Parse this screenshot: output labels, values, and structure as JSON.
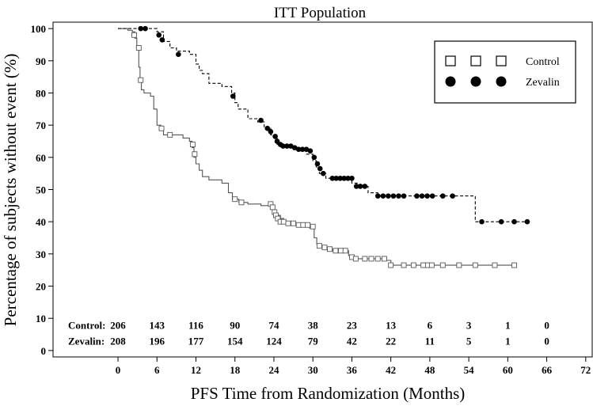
{
  "chart_data": {
    "type": "line",
    "title": "ITT Population",
    "xlabel": "PFS Time from Randomization (Months)",
    "ylabel": "Percentage of subjects without event (%)",
    "xlim": [
      -10,
      73
    ],
    "ylim": [
      -2,
      102
    ],
    "x_ticks": [
      0,
      6,
      12,
      18,
      24,
      30,
      36,
      42,
      48,
      54,
      60,
      66,
      72
    ],
    "y_ticks": [
      0,
      10,
      20,
      30,
      40,
      50,
      60,
      70,
      80,
      90,
      100
    ],
    "grid": false,
    "legend_position": "top-right",
    "series": [
      {
        "name": "Control",
        "line_style": "solid",
        "marker": "open-square",
        "color": "#555555",
        "steps": [
          [
            0,
            100
          ],
          [
            1.5,
            99.5
          ],
          [
            2.2,
            99
          ],
          [
            2.6,
            97
          ],
          [
            2.9,
            94
          ],
          [
            3.2,
            88
          ],
          [
            3.4,
            84
          ],
          [
            3.6,
            81
          ],
          [
            4,
            80
          ],
          [
            5,
            79
          ],
          [
            5.5,
            75
          ],
          [
            6,
            70
          ],
          [
            6.6,
            69
          ],
          [
            7,
            67
          ],
          [
            10,
            66
          ],
          [
            11,
            65
          ],
          [
            11.4,
            63
          ],
          [
            11.7,
            60
          ],
          [
            12,
            58
          ],
          [
            12.5,
            56
          ],
          [
            13,
            54
          ],
          [
            14,
            53
          ],
          [
            16,
            52
          ],
          [
            17,
            49
          ],
          [
            17.6,
            47
          ],
          [
            18.6,
            46
          ],
          [
            20,
            45.5
          ],
          [
            22,
            45
          ],
          [
            23.5,
            44
          ],
          [
            24,
            43
          ],
          [
            24.4,
            42
          ],
          [
            25,
            41
          ],
          [
            25.5,
            40
          ],
          [
            26.3,
            39.5
          ],
          [
            27,
            39
          ],
          [
            28,
            38.5
          ],
          [
            29.5,
            38
          ],
          [
            30.2,
            35
          ],
          [
            30.6,
            33
          ],
          [
            31,
            32
          ],
          [
            32,
            31.5
          ],
          [
            33,
            31
          ],
          [
            35.5,
            29.5
          ],
          [
            36,
            28.5
          ],
          [
            38,
            28.5
          ],
          [
            41,
            28
          ],
          [
            42,
            26.5
          ],
          [
            61,
            26.5
          ]
        ],
        "censored": [
          [
            2.5,
            98
          ],
          [
            3.2,
            94
          ],
          [
            3.5,
            84
          ],
          [
            6.7,
            69
          ],
          [
            8,
            67
          ],
          [
            11.5,
            64
          ],
          [
            11.8,
            61
          ],
          [
            18,
            47
          ],
          [
            19,
            46
          ],
          [
            23.5,
            45.5
          ],
          [
            23.8,
            44.5
          ],
          [
            24.1,
            43
          ],
          [
            24.3,
            42
          ],
          [
            24.6,
            41
          ],
          [
            25,
            40
          ],
          [
            25.5,
            40
          ],
          [
            26.2,
            39.5
          ],
          [
            27,
            39.5
          ],
          [
            27.8,
            39
          ],
          [
            28.5,
            39
          ],
          [
            29.2,
            39
          ],
          [
            30,
            38.5
          ],
          [
            31,
            32.5
          ],
          [
            31.8,
            32
          ],
          [
            32.6,
            31.5
          ],
          [
            33.5,
            31
          ],
          [
            34.3,
            31
          ],
          [
            35,
            31
          ],
          [
            36,
            29
          ],
          [
            36.6,
            28.5
          ],
          [
            38,
            28.5
          ],
          [
            39,
            28.5
          ],
          [
            40,
            28.5
          ],
          [
            41,
            28.5
          ],
          [
            42,
            26.5
          ],
          [
            44,
            26.5
          ],
          [
            45.5,
            26.5
          ],
          [
            47,
            26.5
          ],
          [
            47.7,
            26.5
          ],
          [
            48.3,
            26.5
          ],
          [
            50,
            26.5
          ],
          [
            52.5,
            26.5
          ],
          [
            55,
            26.5
          ],
          [
            58,
            26.5
          ],
          [
            61,
            26.5
          ]
        ]
      },
      {
        "name": "Zevalin",
        "line_style": "dashed",
        "marker": "filled-circle",
        "color": "#000000",
        "steps": [
          [
            0,
            100
          ],
          [
            6,
            99
          ],
          [
            7,
            96
          ],
          [
            8,
            94
          ],
          [
            9,
            93
          ],
          [
            11,
            92
          ],
          [
            12,
            89
          ],
          [
            12.5,
            87
          ],
          [
            13,
            86
          ],
          [
            14,
            83
          ],
          [
            16,
            82
          ],
          [
            17.5,
            80
          ],
          [
            18,
            77
          ],
          [
            18.5,
            75
          ],
          [
            20,
            72
          ],
          [
            21.5,
            71
          ],
          [
            22.5,
            69
          ],
          [
            23.5,
            67
          ],
          [
            24,
            66
          ],
          [
            24.5,
            64
          ],
          [
            25,
            63
          ],
          [
            27,
            62.5
          ],
          [
            28,
            62
          ],
          [
            29,
            61
          ],
          [
            30,
            59
          ],
          [
            30.5,
            57
          ],
          [
            31,
            55
          ],
          [
            32,
            53.5
          ],
          [
            36,
            52
          ],
          [
            37,
            51
          ],
          [
            38.5,
            49
          ],
          [
            40,
            48
          ],
          [
            54,
            48
          ],
          [
            55,
            40
          ],
          [
            63,
            40
          ]
        ],
        "censored": [
          [
            3.5,
            100
          ],
          [
            4.2,
            100
          ],
          [
            6.3,
            98
          ],
          [
            6.8,
            96.5
          ],
          [
            9.3,
            92
          ],
          [
            17.7,
            79
          ],
          [
            22,
            71.5
          ],
          [
            23,
            69
          ],
          [
            23.5,
            68
          ],
          [
            24.2,
            66.5
          ],
          [
            24.5,
            65
          ],
          [
            25,
            64
          ],
          [
            25.4,
            63.5
          ],
          [
            26,
            63.5
          ],
          [
            26.6,
            63.5
          ],
          [
            27.2,
            63
          ],
          [
            27.8,
            62.5
          ],
          [
            28.4,
            62.5
          ],
          [
            29,
            62.5
          ],
          [
            29.6,
            62
          ],
          [
            30.2,
            60
          ],
          [
            30.7,
            58
          ],
          [
            31.1,
            56.5
          ],
          [
            31.6,
            55
          ],
          [
            33,
            53.5
          ],
          [
            33.6,
            53.5
          ],
          [
            34.2,
            53.5
          ],
          [
            34.8,
            53.5
          ],
          [
            35.4,
            53.5
          ],
          [
            36,
            53.5
          ],
          [
            36.7,
            51
          ],
          [
            37.3,
            51
          ],
          [
            38,
            51
          ],
          [
            40,
            48
          ],
          [
            40.8,
            48
          ],
          [
            41.6,
            48
          ],
          [
            42.4,
            48
          ],
          [
            43.2,
            48
          ],
          [
            44,
            48
          ],
          [
            46,
            48
          ],
          [
            46.8,
            48
          ],
          [
            47.6,
            48
          ],
          [
            48.4,
            48
          ],
          [
            50,
            48
          ],
          [
            51.5,
            48
          ],
          [
            56,
            40
          ],
          [
            59,
            40
          ],
          [
            61,
            40
          ],
          [
            63,
            40
          ]
        ]
      }
    ],
    "at_risk": {
      "times": [
        0,
        6,
        12,
        18,
        24,
        30,
        36,
        42,
        48,
        54,
        60,
        66,
        72
      ],
      "rows": [
        {
          "label": "Control:",
          "y": 8,
          "counts": [
            "206",
            "143",
            "116",
            "90",
            "74",
            "38",
            "23",
            "13",
            "6",
            "3",
            "1",
            "0"
          ]
        },
        {
          "label": "Zevalin:",
          "y": 3,
          "counts": [
            "208",
            "196",
            "177",
            "154",
            "124",
            "79",
            "42",
            "22",
            "11",
            "5",
            "1",
            "0"
          ]
        }
      ]
    }
  }
}
